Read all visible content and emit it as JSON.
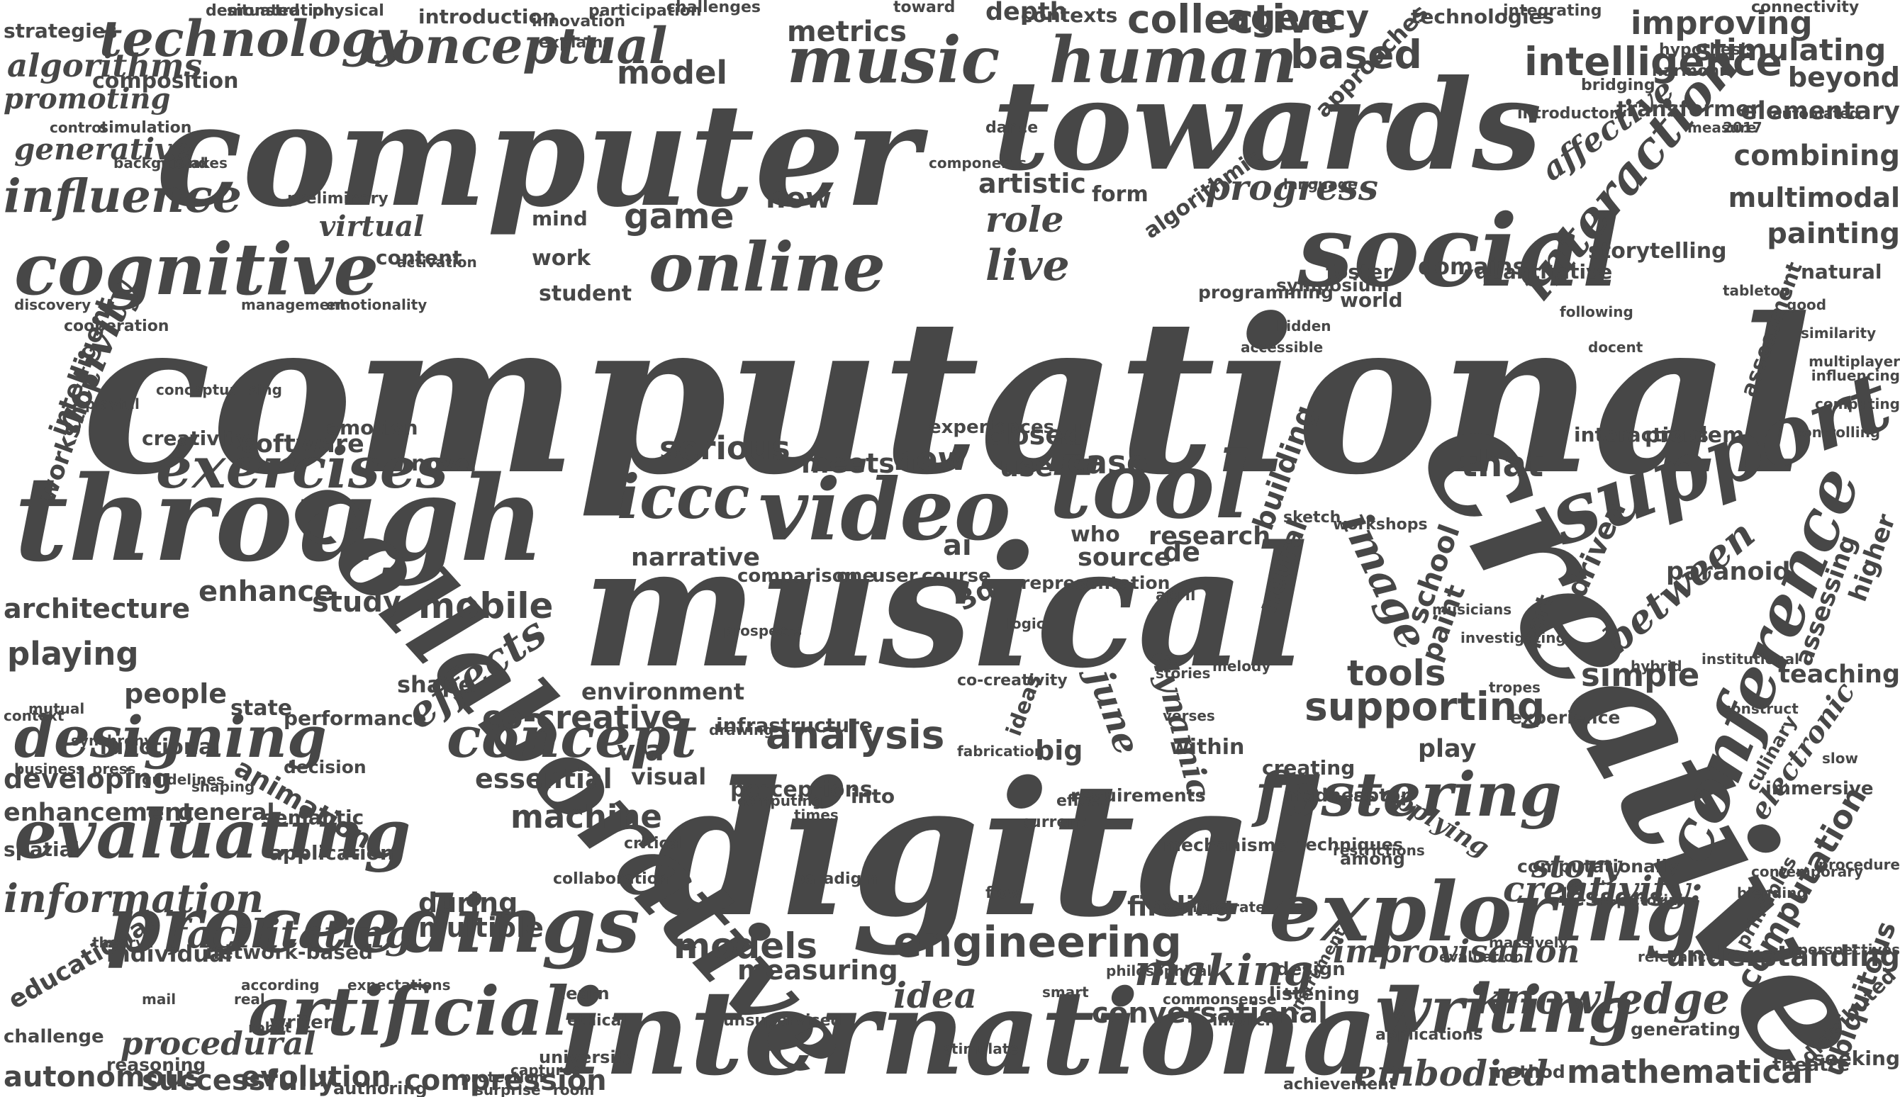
{
  "word_cloud": {
    "colors": {
      "background": "#ffffff",
      "text": "#474747"
    },
    "words": [
      "computational",
      "computer",
      "towards",
      "musical",
      "digital",
      "creative",
      "international",
      "through",
      "collaborative",
      "social",
      "video",
      "tool",
      "support",
      "cognitive",
      "online",
      "proceedings",
      "evaluating",
      "exploring",
      "conference",
      "music",
      "human",
      "technology",
      "conceptual",
      "exercises",
      "concept",
      "designing",
      "artificial",
      "writing",
      "fostering",
      "iccc",
      "intelligence",
      "interaction",
      "mobile",
      "effects",
      "analysis",
      "engineering",
      "knowledge",
      "information",
      "facilitating",
      "mathematical",
      "embodied",
      "improvisation",
      "understanding",
      "progress",
      "influence",
      "activity",
      "collective",
      "agency",
      "metrics",
      "based",
      "model",
      "live",
      "role",
      "game",
      "serious",
      "narrative",
      "new",
      "case",
      "that",
      "image",
      "between",
      "electronic",
      "computation",
      "supporting",
      "co-creative",
      "tools",
      "machine",
      "models",
      "making",
      "idea",
      "conversational",
      "compression",
      "evolution",
      "successfully",
      "procedural",
      "autonomous",
      "playing",
      "architecture",
      "enhance",
      "study",
      "people",
      "developing",
      "enhancement",
      "animation",
      "creativity:",
      "story",
      "simple",
      "driven",
      "neural",
      "building",
      "paranoid",
      "affective",
      "improving",
      "stimulating",
      "beyond",
      "elementary",
      "combining",
      "multimodal",
      "painting",
      "domains",
      "strategies",
      "algorithms",
      "promoting",
      "generative",
      "composition",
      "introduction",
      "depth",
      "contexts",
      "technologies",
      "approaches",
      "transformer",
      "virtual",
      "content",
      "work",
      "student",
      "mind",
      "how",
      "artistic",
      "form",
      "algorithmic",
      "world",
      "foster",
      "storytelling",
      "quantitative",
      "symposium",
      "programming",
      "assessment",
      "natural",
      "software",
      "emotion",
      "novel",
      "creativity",
      "experiences",
      "closed",
      "use",
      "meets",
      "interactions",
      "problem",
      "workshop",
      "intelligent",
      "comparison",
      "one",
      "user",
      "course",
      "ai",
      "3d",
      "de",
      "source",
      "research",
      "who",
      "representation",
      "school",
      "paint",
      "part",
      "higher",
      "assessing",
      "teaching",
      "shape",
      "state",
      "performance",
      "environment",
      "infrastructure",
      "ideas",
      "big",
      "dynamic",
      "june",
      "within",
      "play",
      "essential",
      "visual",
      "via",
      "perceptions",
      "into",
      "requirements",
      "creating",
      "madness",
      "laptop",
      "applying",
      "general",
      "semantic",
      "functional",
      "decision",
      "spatial",
      "application",
      "educational",
      "individual",
      "network-based",
      "multiple",
      "during",
      "measuring",
      "finding",
      "listening",
      "design",
      "lessons",
      "principles",
      "distributed",
      "ubiquitous",
      "seeking",
      "theatre",
      "generating",
      "method",
      "challenge",
      "reasoning",
      "writers",
      "authoring",
      "university",
      "ethical",
      "unsupervised",
      "learn",
      "achievement",
      "applications",
      "implicit",
      "instrument",
      "techniques",
      "among",
      "computationally",
      "experience",
      "culinary",
      "immersive",
      "mechanisms",
      "co-creativity",
      "critical",
      "collaboration",
      "paradigm",
      "flow",
      "effect",
      "current",
      "april",
      "sketch",
      "workshops",
      "dance",
      "components",
      "activation",
      "challenges",
      "explains",
      "innovation",
      "participation",
      "demonstration",
      "situated",
      "physical",
      "toward",
      "integrating",
      "connectivity",
      "harmonic",
      "bridging",
      "hypothesis",
      "introductory",
      "preliminary",
      "simulation",
      "control",
      "background",
      "mistakes",
      "discovery",
      "management",
      "emotionality",
      "cooperation",
      "conceptualising",
      "playful",
      "influencing",
      "controlling",
      "computing",
      "multiplayer",
      "similarity",
      "good",
      "following",
      "tabletop",
      "automated",
      "2017",
      "measure",
      "language",
      "prospects",
      "context",
      "mutual",
      "synchrony",
      "press",
      "guidelines",
      "shaping",
      "business",
      "theory",
      "real",
      "mail",
      "robot",
      "expectations",
      "according",
      "captures",
      "room",
      "surprise",
      "protection",
      "stimulate",
      "smart",
      "philosophical",
      "commonsense",
      "demonstrate",
      "evaluation",
      "massively",
      "relevance",
      "contemporary",
      "perspectives",
      "pictorial",
      "blending",
      "procedure",
      "slow",
      "times",
      "computing",
      "drawing",
      "fabrication",
      "restrictions",
      "construct",
      "institutional",
      "hybrid",
      "tropes",
      "investigating",
      "musicians",
      "melody",
      "verses",
      "stories",
      "logic",
      "hidden",
      "accessible",
      "docent",
      "access",
      "inspirations",
      "adaptation",
      "crowd",
      "symbolic",
      "generation"
    ]
  }
}
